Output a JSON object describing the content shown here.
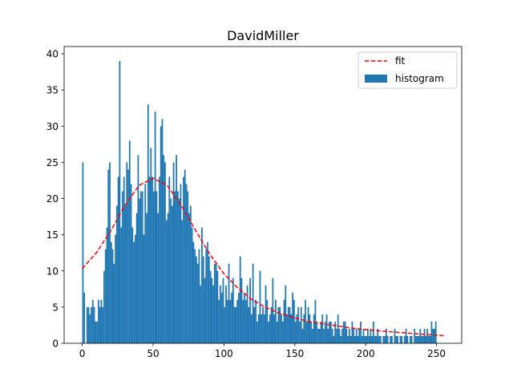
{
  "chart_data": {
    "type": "bar",
    "title": "DavidMiller",
    "xlabel": "",
    "ylabel": "",
    "xlim": [
      -12.75,
      267.75
    ],
    "ylim": [
      0,
      41
    ],
    "xticks": [
      0,
      50,
      100,
      150,
      200,
      250
    ],
    "yticks": [
      0,
      5,
      10,
      15,
      20,
      25,
      30,
      35,
      40
    ],
    "grid": false,
    "legend": {
      "position": "upper right",
      "entries": [
        {
          "label": "fit",
          "style": "dashed-line",
          "color": "#ff0000"
        },
        {
          "label": "histogram",
          "style": "patch",
          "color": "#1f77b4"
        }
      ]
    },
    "histogram": {
      "name": "histogram",
      "color": "#1f77b4",
      "bin_start": 0,
      "bin_width": 1,
      "counts": [
        25,
        7,
        0,
        5,
        5,
        4,
        5,
        6,
        5,
        3,
        3,
        6,
        5,
        6,
        5,
        10,
        13,
        16,
        24,
        25,
        14,
        13,
        11,
        15,
        19,
        23,
        39,
        16,
        21,
        23,
        19,
        25,
        24,
        28,
        22,
        16,
        14,
        15,
        18,
        26,
        20,
        21,
        21,
        15,
        22,
        18,
        33,
        23,
        27,
        23,
        21,
        32,
        21,
        18,
        23,
        30,
        31,
        26,
        25,
        17,
        18,
        23,
        20,
        19,
        25,
        21,
        26,
        21,
        20,
        22,
        17,
        23,
        24,
        22,
        21,
        18,
        19,
        16,
        14,
        13,
        12,
        11,
        13,
        8,
        16,
        12,
        9,
        13,
        14,
        12,
        10,
        9,
        8,
        11,
        11,
        10,
        6,
        8,
        7,
        9,
        5,
        8,
        6,
        11,
        6,
        7,
        9,
        5,
        5,
        6,
        7,
        12,
        9,
        6,
        7,
        6,
        8,
        5,
        9,
        4,
        11,
        5,
        6,
        3,
        4,
        10,
        4,
        5,
        4,
        8,
        6,
        3,
        4,
        5,
        9,
        4,
        6,
        3,
        5,
        5,
        4,
        3,
        6,
        8,
        4,
        5,
        5,
        4,
        7,
        6,
        3,
        4,
        5,
        3,
        5,
        2,
        4,
        6,
        3,
        5,
        4,
        3,
        2,
        4,
        6,
        3,
        2,
        2,
        3,
        4,
        2,
        3,
        4,
        2,
        3,
        3,
        2,
        1,
        3,
        2,
        4,
        2,
        1,
        2,
        3,
        3,
        2,
        1,
        2,
        1,
        3,
        2,
        1,
        2,
        1,
        2,
        3,
        1,
        2,
        1,
        1,
        2,
        1,
        2,
        1,
        3,
        1,
        1,
        2,
        1,
        1,
        0,
        1,
        1,
        2,
        1,
        0,
        1,
        1,
        0,
        2,
        1,
        1,
        0,
        1,
        1,
        0,
        1,
        2,
        1,
        0,
        1,
        1,
        0,
        2,
        1,
        1,
        1,
        2,
        1,
        1,
        2,
        1,
        2,
        1,
        1,
        3,
        2,
        2,
        3
      ]
    },
    "fit": {
      "name": "fit",
      "color": "#ff0000",
      "style": "dashed",
      "x": [
        0,
        10,
        20,
        30,
        40,
        50,
        60,
        70,
        80,
        90,
        100,
        110,
        120,
        130,
        140,
        150,
        160,
        170,
        180,
        190,
        200,
        210,
        220,
        230,
        240,
        250,
        255
      ],
      "y": [
        10.3,
        12.5,
        15.5,
        19.0,
        21.8,
        22.8,
        21.8,
        19.0,
        15.6,
        12.3,
        9.6,
        7.6,
        6.0,
        4.9,
        4.1,
        3.5,
        3.0,
        2.7,
        2.4,
        2.1,
        1.9,
        1.7,
        1.55,
        1.4,
        1.25,
        1.12,
        1.05
      ]
    }
  }
}
